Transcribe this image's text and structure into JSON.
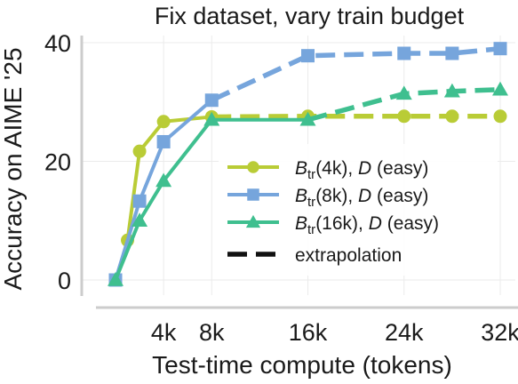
{
  "chart_data": {
    "type": "line",
    "title": "Fix dataset, vary train budget",
    "xlabel": "Test-time compute (tokens)",
    "ylabel": "Accuracy on AIME '25",
    "xlim": [
      0,
      33
    ],
    "ylim": [
      -2,
      40
    ],
    "xticks": [
      {
        "value": 4,
        "label": "4k"
      },
      {
        "value": 8,
        "label": "8k"
      },
      {
        "value": 16,
        "label": "16k"
      },
      {
        "value": 24,
        "label": "24k"
      },
      {
        "value": 32,
        "label": "32k"
      }
    ],
    "yticks": [
      {
        "value": 0,
        "label": "0"
      },
      {
        "value": 20,
        "label": "20"
      },
      {
        "value": 40,
        "label": "40"
      }
    ],
    "grid": true,
    "legend_position": "lower-right",
    "series": [
      {
        "legend": {
          "main": "B",
          "sub": "tr",
          "budget": "(4k), ",
          "d": "D",
          "rest": " (easy)"
        },
        "color": "#b9cc36",
        "marker": "circle",
        "solid": {
          "x": [
            1,
            2,
            4,
            8
          ],
          "y": [
            6.7,
            21.7,
            26.7,
            27.5
          ]
        },
        "extrapolation": {
          "x": [
            8,
            16,
            24,
            28,
            32
          ],
          "y": [
            27.5,
            27.6,
            27.6,
            27.6,
            27.6
          ]
        }
      },
      {
        "legend": {
          "main": "B",
          "sub": "tr",
          "budget": "(8k), ",
          "d": "D",
          "rest": " (easy)"
        },
        "color": "#76a5dc",
        "marker": "square",
        "solid": {
          "x": [
            0,
            2,
            4,
            8
          ],
          "y": [
            0,
            13.3,
            23.3,
            30.3
          ]
        },
        "extrapolation": {
          "x": [
            8,
            16,
            24,
            28,
            32
          ],
          "y": [
            30.3,
            37.8,
            38.2,
            38.2,
            39
          ]
        }
      },
      {
        "legend": {
          "main": "B",
          "sub": "tr",
          "budget": "(16k), ",
          "d": "D",
          "rest": " (easy)"
        },
        "color": "#3fbf8f",
        "marker": "triangle",
        "solid": {
          "x": [
            0,
            2,
            4,
            8,
            16
          ],
          "y": [
            0,
            10,
            16.7,
            27.0,
            27.0
          ]
        },
        "extrapolation": {
          "x": [
            16,
            24,
            28,
            32
          ],
          "y": [
            27.0,
            31.4,
            31.8,
            32.1
          ]
        }
      }
    ],
    "extrapolation_legend": "extrapolation"
  }
}
